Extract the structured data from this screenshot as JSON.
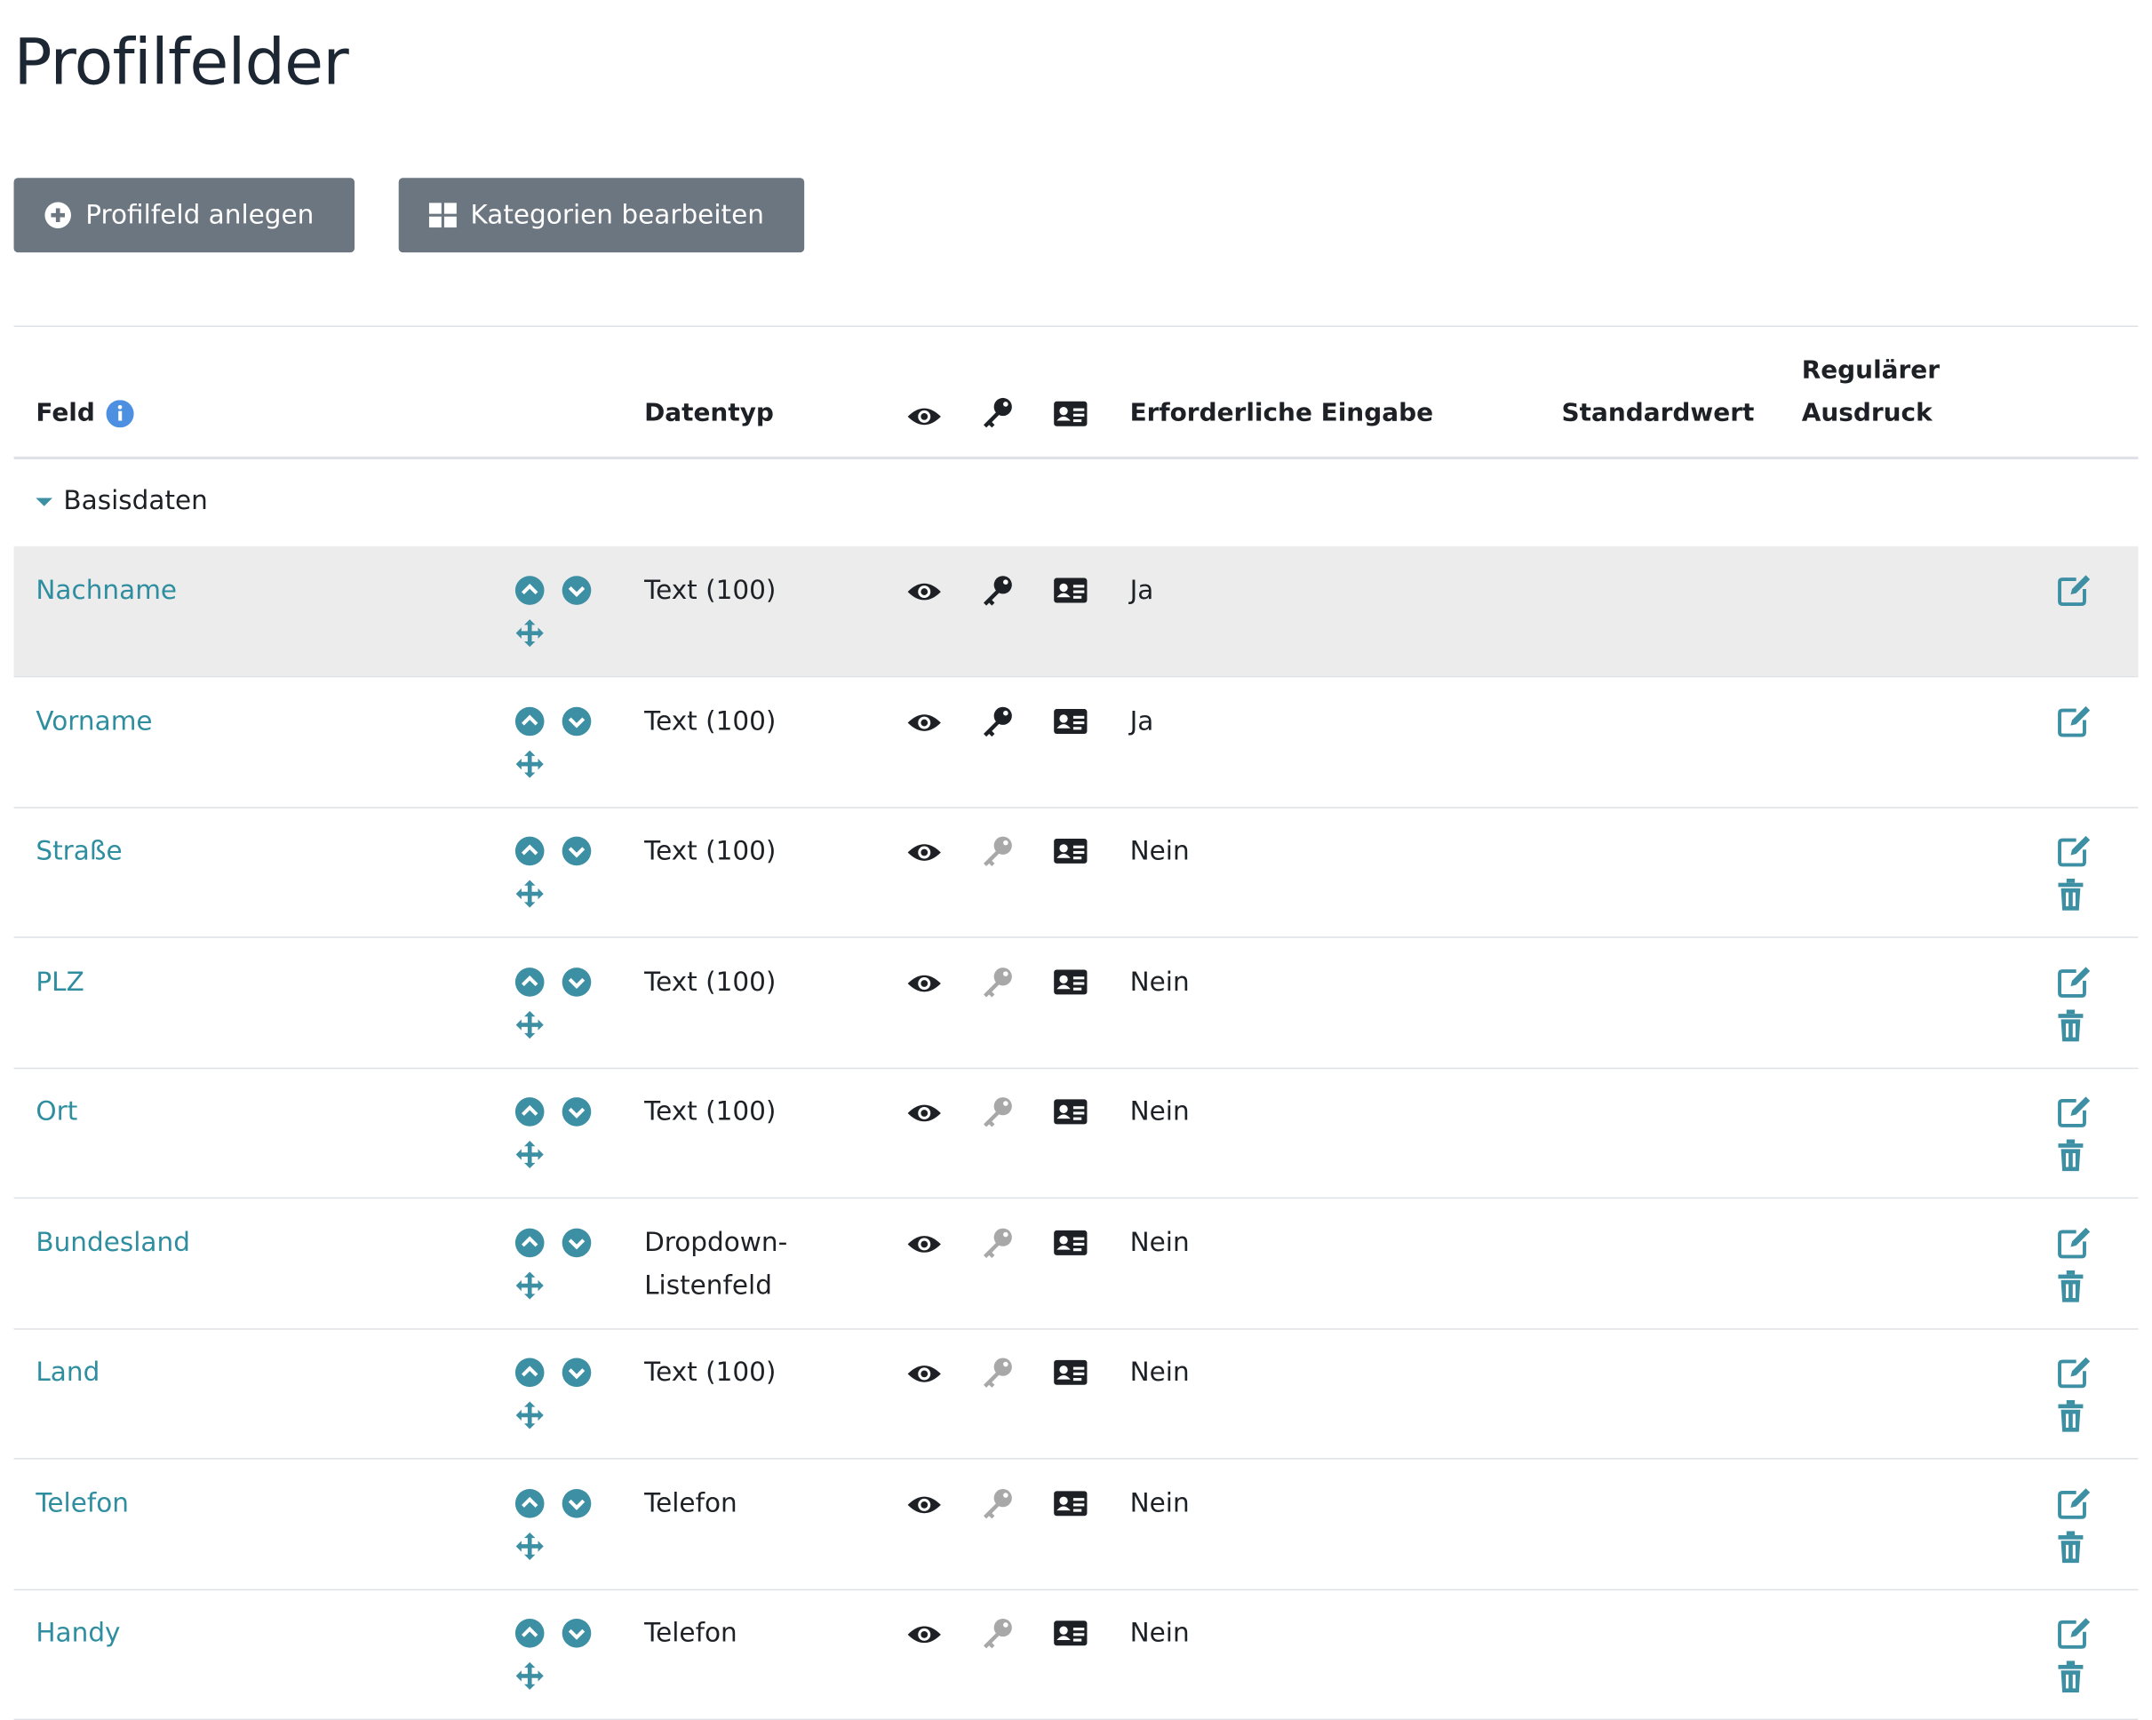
{
  "header": {
    "title": "Profilfelder"
  },
  "buttons": [
    {
      "label": "Profilfeld anlegen"
    },
    {
      "label": "Kategorien bearbeiten"
    }
  ],
  "table": {
    "headers": {
      "field": "Feld",
      "datatype": "Datentyp",
      "required": "Erforderliche Eingabe",
      "default": "Standardwert",
      "regex": "Regulärer Ausdruck"
    },
    "group": "Basisdaten",
    "rows": [
      {
        "field": "Nachname",
        "datatype": "Text (100)",
        "required": "Ja",
        "locked": true
      },
      {
        "field": "Vorname",
        "datatype": "Text (100)",
        "required": "Ja",
        "locked": true
      },
      {
        "field": "Straße",
        "datatype": "Text (100)",
        "required": "Nein",
        "locked": false
      },
      {
        "field": "PLZ",
        "datatype": "Text (100)",
        "required": "Nein",
        "locked": false
      },
      {
        "field": "Ort",
        "datatype": "Text (100)",
        "required": "Nein",
        "locked": false
      },
      {
        "field": "Bundesland",
        "datatype": "Dropdown-Listenfeld",
        "required": "Nein",
        "locked": false
      },
      {
        "field": "Land",
        "datatype": "Text (100)",
        "required": "Nein",
        "locked": false
      },
      {
        "field": "Telefon",
        "datatype": "Telefon",
        "required": "Nein",
        "locked": false
      },
      {
        "field": "Handy",
        "datatype": "Telefon",
        "required": "Nein",
        "locked": false
      }
    ]
  }
}
